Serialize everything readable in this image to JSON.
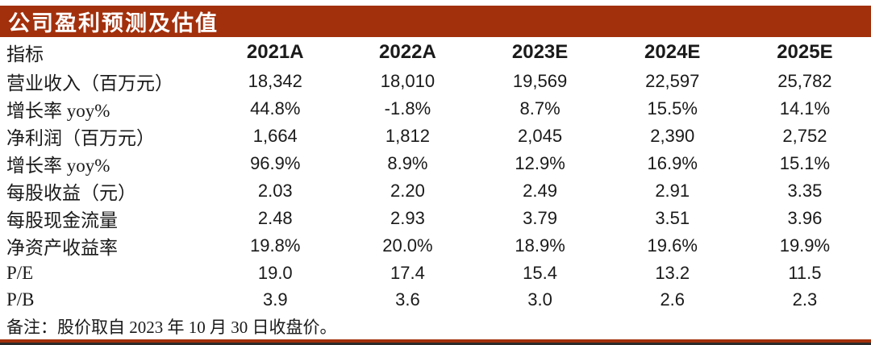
{
  "title": "公司盈利预测及估值",
  "colors": {
    "accent_red": "#A2300C",
    "rule_dark": "#2b2b2b",
    "text": "#1a1a1a",
    "title_text": "#ffffff"
  },
  "table": {
    "indicator_header": "指标",
    "year_headers": [
      "2021A",
      "2022A",
      "2023E",
      "2024E",
      "2025E"
    ],
    "rows": [
      {
        "label": "营业收入（百万元）",
        "values": [
          "18,342",
          "18,010",
          "19,569",
          "22,597",
          "25,782"
        ]
      },
      {
        "label": "增长率 yoy%",
        "values": [
          "44.8%",
          "-1.8%",
          "8.7%",
          "15.5%",
          "14.1%"
        ]
      },
      {
        "label": "净利润（百万元）",
        "values": [
          "1,664",
          "1,812",
          "2,045",
          "2,390",
          "2,752"
        ]
      },
      {
        "label": "增长率 yoy%",
        "values": [
          "96.9%",
          "8.9%",
          "12.9%",
          "16.9%",
          "15.1%"
        ]
      },
      {
        "label": "每股收益（元）",
        "values": [
          "2.03",
          "2.20",
          "2.49",
          "2.91",
          "3.35"
        ]
      },
      {
        "label": "每股现金流量",
        "values": [
          "2.48",
          "2.93",
          "3.79",
          "3.51",
          "3.96"
        ]
      },
      {
        "label": "净资产收益率",
        "values": [
          "19.8%",
          "20.0%",
          "18.9%",
          "19.6%",
          "19.9%"
        ]
      },
      {
        "label": "P/E",
        "values": [
          "19.0",
          "17.4",
          "15.4",
          "13.2",
          "11.5"
        ]
      },
      {
        "label": "P/B",
        "values": [
          "3.9",
          "3.6",
          "3.0",
          "2.6",
          "2.3"
        ]
      }
    ]
  },
  "note": "备注：股价取自 2023 年 10 月 30 日收盘价。"
}
